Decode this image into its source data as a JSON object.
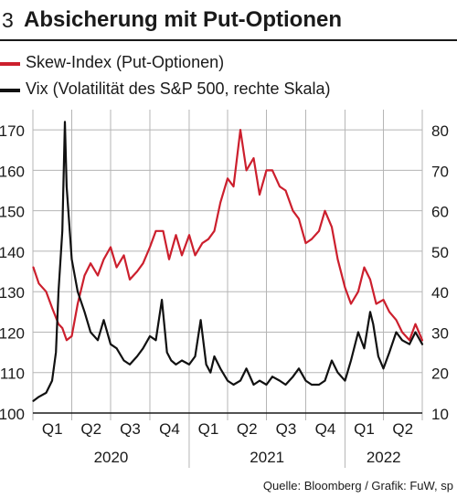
{
  "header": {
    "number": "3",
    "title": "Absicherung mit Put-Optionen"
  },
  "source": "Quelle: Bloomberg / Grafik: FuW, sp",
  "colors": {
    "skew": "#cc1f2d",
    "vix": "#111111",
    "grid": "#b5b5b5",
    "background": "#ffffff"
  },
  "chart_data": {
    "type": "line",
    "x_start": "2020-01",
    "x_end": "2022-07",
    "quarter_ticks": [
      "Q1",
      "Q2",
      "Q3",
      "Q4",
      "Q1",
      "Q2",
      "Q3",
      "Q4",
      "Q1",
      "Q2"
    ],
    "years": [
      "2020",
      "2021",
      "2022"
    ],
    "left_axis": {
      "ticks": [
        100,
        110,
        120,
        130,
        140,
        150,
        160,
        170
      ],
      "range": [
        100,
        175
      ]
    },
    "right_axis": {
      "ticks": [
        10,
        20,
        30,
        40,
        50,
        60,
        70,
        80
      ],
      "range": [
        10,
        85
      ]
    },
    "grid": true,
    "legend_position": "top-left",
    "series": [
      {
        "name": "Skew-Index (Put-Optionen)",
        "axis": "left",
        "color": "#cc1f2d",
        "x": [
          "2020-01-02",
          "2020-01-15",
          "2020-02-01",
          "2020-02-15",
          "2020-03-01",
          "2020-03-10",
          "2020-03-20",
          "2020-04-01",
          "2020-04-15",
          "2020-05-01",
          "2020-05-15",
          "2020-06-01",
          "2020-06-15",
          "2020-07-01",
          "2020-07-15",
          "2020-08-01",
          "2020-08-15",
          "2020-09-01",
          "2020-09-15",
          "2020-10-01",
          "2020-10-15",
          "2020-11-01",
          "2020-11-15",
          "2020-12-01",
          "2020-12-15",
          "2021-01-01",
          "2021-01-15",
          "2021-02-01",
          "2021-02-15",
          "2021-03-01",
          "2021-03-15",
          "2021-04-01",
          "2021-04-15",
          "2021-05-01",
          "2021-05-15",
          "2021-06-01",
          "2021-06-15",
          "2021-07-01",
          "2021-07-15",
          "2021-08-01",
          "2021-08-15",
          "2021-09-01",
          "2021-09-15",
          "2021-10-01",
          "2021-10-15",
          "2021-11-01",
          "2021-11-15",
          "2021-12-01",
          "2021-12-15",
          "2022-01-01",
          "2022-01-15",
          "2022-02-01",
          "2022-02-15",
          "2022-03-01",
          "2022-03-15",
          "2022-04-01",
          "2022-04-15",
          "2022-05-01",
          "2022-05-15",
          "2022-06-01",
          "2022-06-15",
          "2022-07-01"
        ],
        "values": [
          136,
          132,
          130,
          126,
          122,
          121,
          118,
          119,
          127,
          134,
          137,
          134,
          138,
          141,
          136,
          139,
          133,
          135,
          137,
          141,
          145,
          145,
          138,
          144,
          139,
          144,
          139,
          142,
          143,
          145,
          152,
          158,
          156,
          170,
          160,
          163,
          154,
          160,
          160,
          156,
          155,
          150,
          148,
          142,
          143,
          145,
          150,
          146,
          138,
          131,
          127,
          130,
          136,
          133,
          127,
          128,
          125,
          123,
          120,
          118,
          122,
          118
        ]
      },
      {
        "name": "Vix (Volatilität des S&P 500, rechte Skala)",
        "axis": "right",
        "color": "#111111",
        "x": [
          "2020-01-02",
          "2020-01-15",
          "2020-02-01",
          "2020-02-15",
          "2020-02-24",
          "2020-03-01",
          "2020-03-10",
          "2020-03-16",
          "2020-03-20",
          "2020-04-01",
          "2020-04-15",
          "2020-05-01",
          "2020-05-15",
          "2020-06-01",
          "2020-06-15",
          "2020-07-01",
          "2020-07-15",
          "2020-08-01",
          "2020-08-15",
          "2020-09-01",
          "2020-09-15",
          "2020-10-01",
          "2020-10-15",
          "2020-10-29",
          "2020-11-10",
          "2020-11-20",
          "2020-12-01",
          "2020-12-15",
          "2021-01-01",
          "2021-01-15",
          "2021-01-28",
          "2021-02-10",
          "2021-02-20",
          "2021-03-01",
          "2021-03-15",
          "2021-04-01",
          "2021-04-15",
          "2021-05-01",
          "2021-05-15",
          "2021-06-01",
          "2021-06-15",
          "2021-07-01",
          "2021-07-15",
          "2021-08-01",
          "2021-08-15",
          "2021-09-01",
          "2021-09-15",
          "2021-10-01",
          "2021-10-15",
          "2021-11-01",
          "2021-11-15",
          "2021-12-01",
          "2021-12-15",
          "2022-01-01",
          "2022-01-15",
          "2022-02-01",
          "2022-02-15",
          "2022-03-01",
          "2022-03-08",
          "2022-03-20",
          "2022-04-01",
          "2022-04-15",
          "2022-05-01",
          "2022-05-15",
          "2022-06-01",
          "2022-06-15",
          "2022-07-01"
        ],
        "values": [
          13,
          14,
          15,
          18,
          25,
          40,
          55,
          82,
          66,
          48,
          40,
          35,
          30,
          28,
          33,
          27,
          26,
          23,
          22,
          24,
          26,
          29,
          28,
          38,
          25,
          23,
          22,
          23,
          22,
          24,
          33,
          22,
          20,
          24,
          21,
          18,
          17,
          18,
          21,
          17,
          18,
          17,
          19,
          18,
          17,
          19,
          21,
          18,
          17,
          17,
          18,
          23,
          20,
          18,
          23,
          30,
          26,
          35,
          32,
          24,
          21,
          25,
          30,
          28,
          27,
          30,
          27
        ]
      }
    ]
  }
}
